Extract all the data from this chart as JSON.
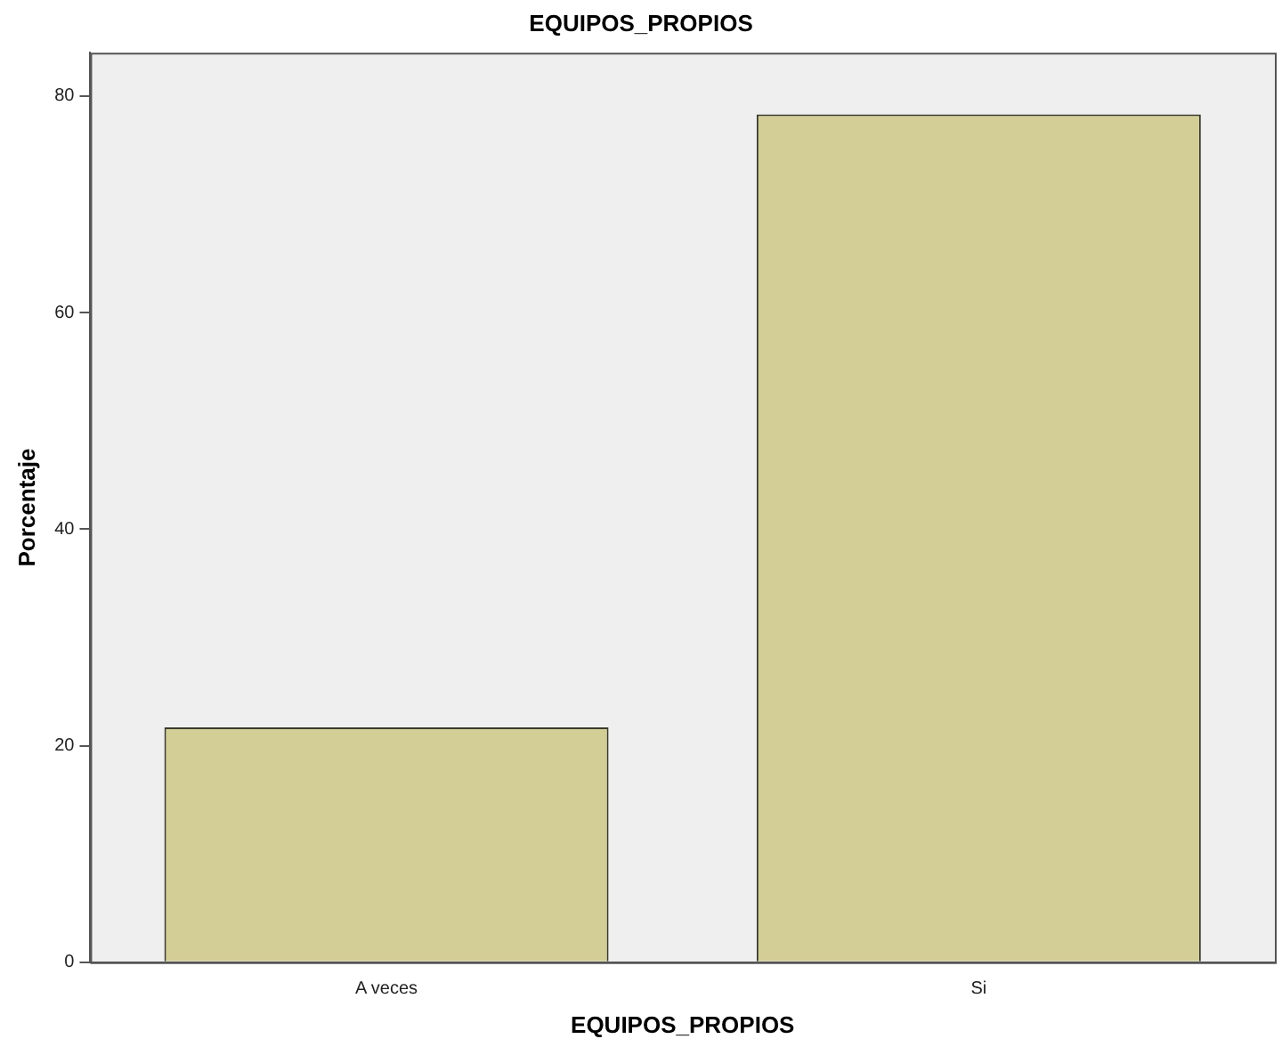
{
  "chart_data": {
    "type": "bar",
    "title": "EQUIPOS_PROPIOS",
    "xlabel": "EQUIPOS_PROPIOS",
    "ylabel": "Porcentaje",
    "categories": [
      "A veces",
      "Si"
    ],
    "values": [
      21.7,
      78.3
    ],
    "color": "#d3cd96",
    "ylim": [
      0,
      84
    ],
    "yticks": [
      0,
      20,
      40,
      60,
      80
    ],
    "grid": false,
    "legend": false
  }
}
